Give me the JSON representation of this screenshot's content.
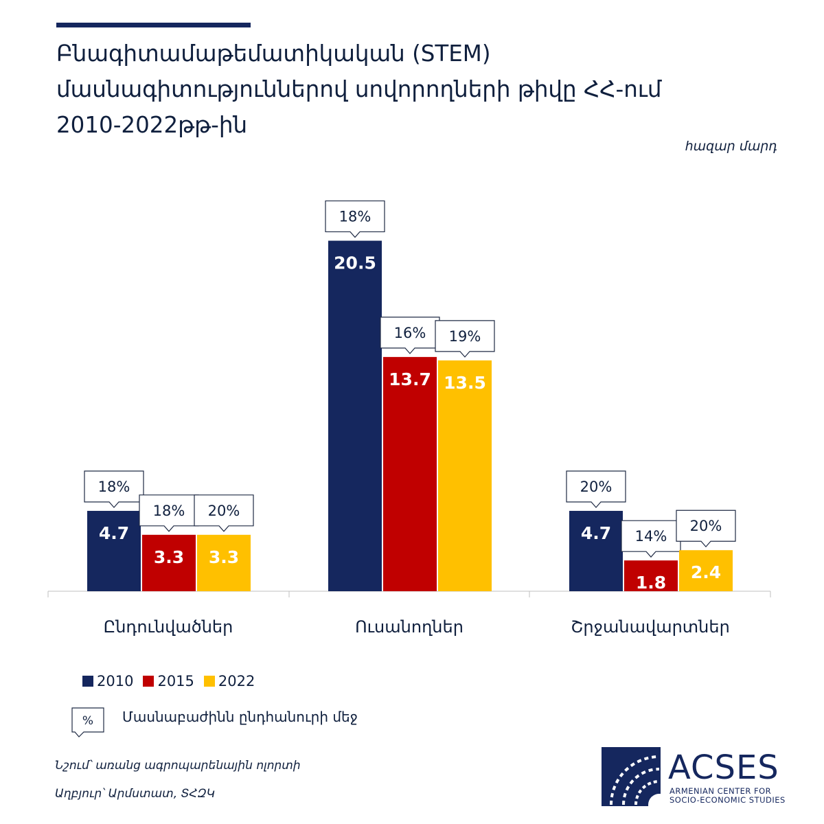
{
  "title_lines": [
    "Բնագիտամաթեմատիկական (STEM)",
    "մասնագիտություններով սովորողների թիվը ՀՀ-ում",
    "2010-2022թթ-ին"
  ],
  "unit": "հազար մարդ",
  "legend": {
    "series_labels": [
      "2010",
      "2015",
      "2022"
    ],
    "percent_symbol": "%",
    "percent_meaning": "Մասնաբաժինն ընդհանուրի մեջ"
  },
  "notes": {
    "note1": "Նշում՝ առանց ագրոպարենային ոլորտի",
    "source": "Աղբյուր՝ Արմստատ, ՏՀԶԿ"
  },
  "logo": {
    "name": "ACSES",
    "line1": "ARMENIAN CENTER FOR",
    "line2": "SOCIO-ECONOMIC STUDIES"
  },
  "colors": {
    "s2010": "#15275e",
    "s2015": "#c00000",
    "s2022": "#ffc000",
    "title": "#0f1f3d",
    "brand": "#15275e"
  },
  "chart_data": {
    "type": "bar",
    "categories": [
      "Ընդունվածներ",
      "Ուսանողներ",
      "Շրջանավարտներ"
    ],
    "series": [
      {
        "name": "2010",
        "values": [
          4.7,
          20.5,
          4.7
        ],
        "shares": [
          "18%",
          "18%",
          "20%"
        ]
      },
      {
        "name": "2015",
        "values": [
          3.3,
          13.7,
          1.8
        ],
        "shares": [
          "18%",
          "16%",
          "14%"
        ]
      },
      {
        "name": "2022",
        "values": [
          3.3,
          13.5,
          2.4
        ],
        "shares": [
          "20%",
          "19%",
          "20%"
        ]
      }
    ],
    "title": "Բնագիտամաթեմատիկական (STEM) մասնագիտություններով սովորողների թիվը ՀՀ-ում 2010-2022թթ-ին",
    "ylabel": "հազար մարդ",
    "ylim": [
      0,
      22
    ],
    "grid": false,
    "legend_position": "bottom-left"
  }
}
